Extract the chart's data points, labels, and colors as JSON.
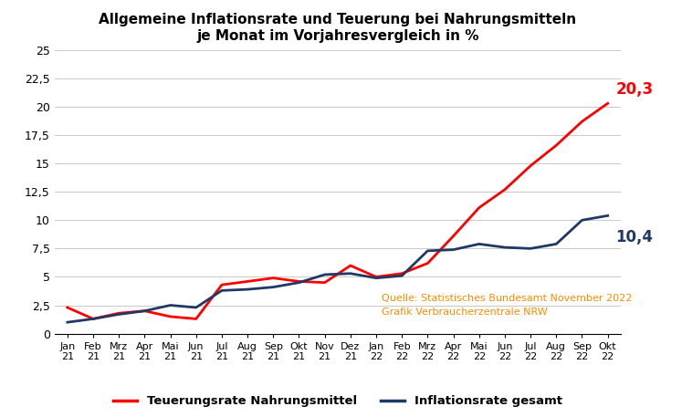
{
  "title_line1": "Allgemeine Inflationsrate und Teuerung bei Nahrungsmitteln",
  "title_line2": "je Monat im Vorjahresvergleich in %",
  "x_labels": [
    "Jan\n21",
    "Feb\n21",
    "Mrz\n21",
    "Apr\n21",
    "Mai\n21",
    "Jun\n21",
    "Jul\n21",
    "Aug\n21",
    "Sep\n21",
    "Okt\n21",
    "Nov\n21",
    "Dez\n21",
    "Jan\n22",
    "Feb\n22",
    "Mrz\n22",
    "Apr\n22",
    "Mai\n22",
    "Jun\n22",
    "Jul\n22",
    "Aug\n22",
    "Sep\n22",
    "Okt\n22"
  ],
  "nahrungsmittel": [
    2.3,
    1.3,
    1.8,
    2.0,
    1.5,
    1.3,
    4.3,
    4.6,
    4.9,
    4.6,
    4.5,
    6.0,
    5.0,
    5.3,
    6.2,
    8.6,
    11.1,
    12.7,
    14.8,
    16.6,
    18.7,
    20.3
  ],
  "inflation_gesamt": [
    1.0,
    1.3,
    1.7,
    2.0,
    2.5,
    2.3,
    3.8,
    3.9,
    4.1,
    4.5,
    5.2,
    5.3,
    4.9,
    5.1,
    7.3,
    7.4,
    7.9,
    7.6,
    7.5,
    7.9,
    10.0,
    10.4
  ],
  "nahrungsmittel_color": "#FF0000",
  "inflation_color": "#1F3864",
  "annotation_nahrungsmittel": "20,3",
  "annotation_inflation": "10,4",
  "annotation_nahrungsmittel_color": "#FF0000",
  "annotation_inflation_color": "#1F3864",
  "source_text_line1": "Quelle: Statistisches Bundesamt November 2022",
  "source_text_line2": "Grafik Verbraucherzentrale NRW",
  "source_color": "#FF8C00",
  "legend_nahrungsmittel": "Teuerungsrate Nahrungsmittel",
  "legend_inflation": "Inflationsrate gesamt",
  "ylim": [
    0,
    25
  ],
  "yticks": [
    0,
    2.5,
    5,
    7.5,
    10,
    12.5,
    15,
    17.5,
    20,
    22.5,
    25
  ],
  "ytick_labels": [
    "0",
    "2,5",
    "5",
    "7,5",
    "10",
    "12,5",
    "15",
    "17,5",
    "20",
    "22,5",
    "25"
  ],
  "background_color": "#FFFFFF",
  "line_width": 2.0
}
